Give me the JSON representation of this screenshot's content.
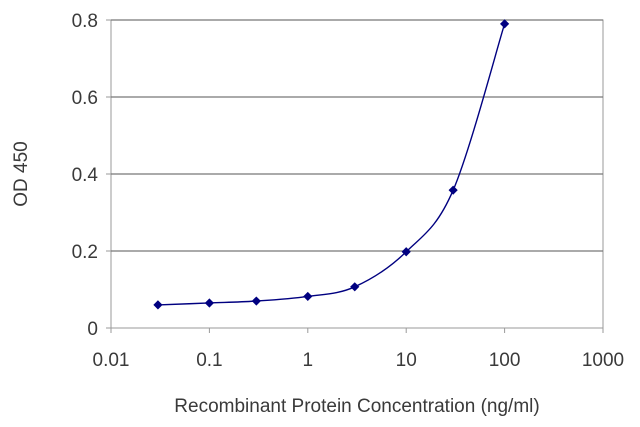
{
  "chart_data": {
    "type": "line",
    "title": "",
    "xlabel": "Recombinant Protein Concentration (ng/ml)",
    "ylabel": "OD 450",
    "x_scale": "log",
    "xlim": [
      0.01,
      1000
    ],
    "ylim": [
      0,
      0.8
    ],
    "x_ticks": [
      "0.01",
      "0.1",
      "1",
      "10",
      "100",
      "1000"
    ],
    "x_tick_values": [
      0.01,
      0.1,
      1,
      10,
      100,
      1000
    ],
    "y_ticks": [
      "0",
      "0.2",
      "0.4",
      "0.6",
      "0.8"
    ],
    "y_tick_values": [
      0,
      0.2,
      0.4,
      0.6,
      0.8
    ],
    "grid": "horizontal",
    "legend": "none",
    "series": [
      {
        "x": [
          0.03,
          0.1,
          0.3,
          1,
          3,
          10,
          30,
          100
        ],
        "y": [
          0.06,
          0.065,
          0.07,
          0.082,
          0.107,
          0.198,
          0.358,
          0.79
        ],
        "color": "#000080"
      }
    ]
  }
}
